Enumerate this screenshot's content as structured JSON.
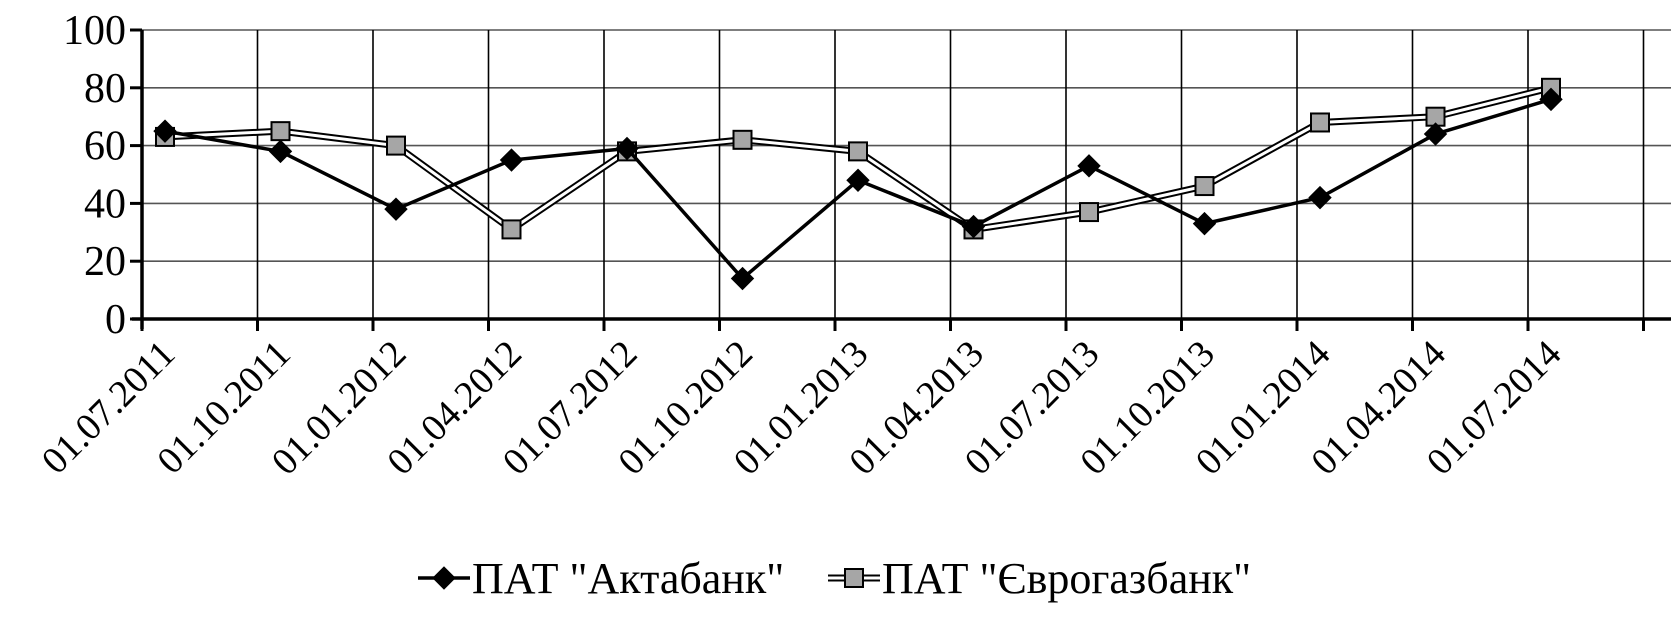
{
  "chart_data": {
    "type": "line",
    "title": "",
    "xlabel": "",
    "ylabel": "",
    "ylim": [
      0,
      100
    ],
    "yticks": [
      0,
      20,
      40,
      60,
      80,
      100
    ],
    "grid": true,
    "legend_position": "bottom",
    "categories": [
      "01.07.2011",
      "01.10.2011",
      "01.01.2012",
      "01.04.2012",
      "01.07.2012",
      "01.10.2012",
      "01.01.2013",
      "01.04.2013",
      "01.07.2013",
      "01.10.2013",
      "01.01.2014",
      "01.04.2014",
      "01.07.2014"
    ],
    "series": [
      {
        "name": "ПАТ \"Актабанк\"",
        "marker": "diamond",
        "color": "#000000",
        "values": [
          65,
          58,
          38,
          55,
          59,
          14,
          48,
          32,
          53,
          33,
          42,
          64,
          76
        ]
      },
      {
        "name": "ПАТ \"Єврогазбанк\"",
        "marker": "square",
        "color": "#a6a6a6",
        "values": [
          63,
          65,
          60,
          31,
          58,
          62,
          58,
          31,
          37,
          46,
          68,
          70,
          80
        ]
      }
    ]
  }
}
